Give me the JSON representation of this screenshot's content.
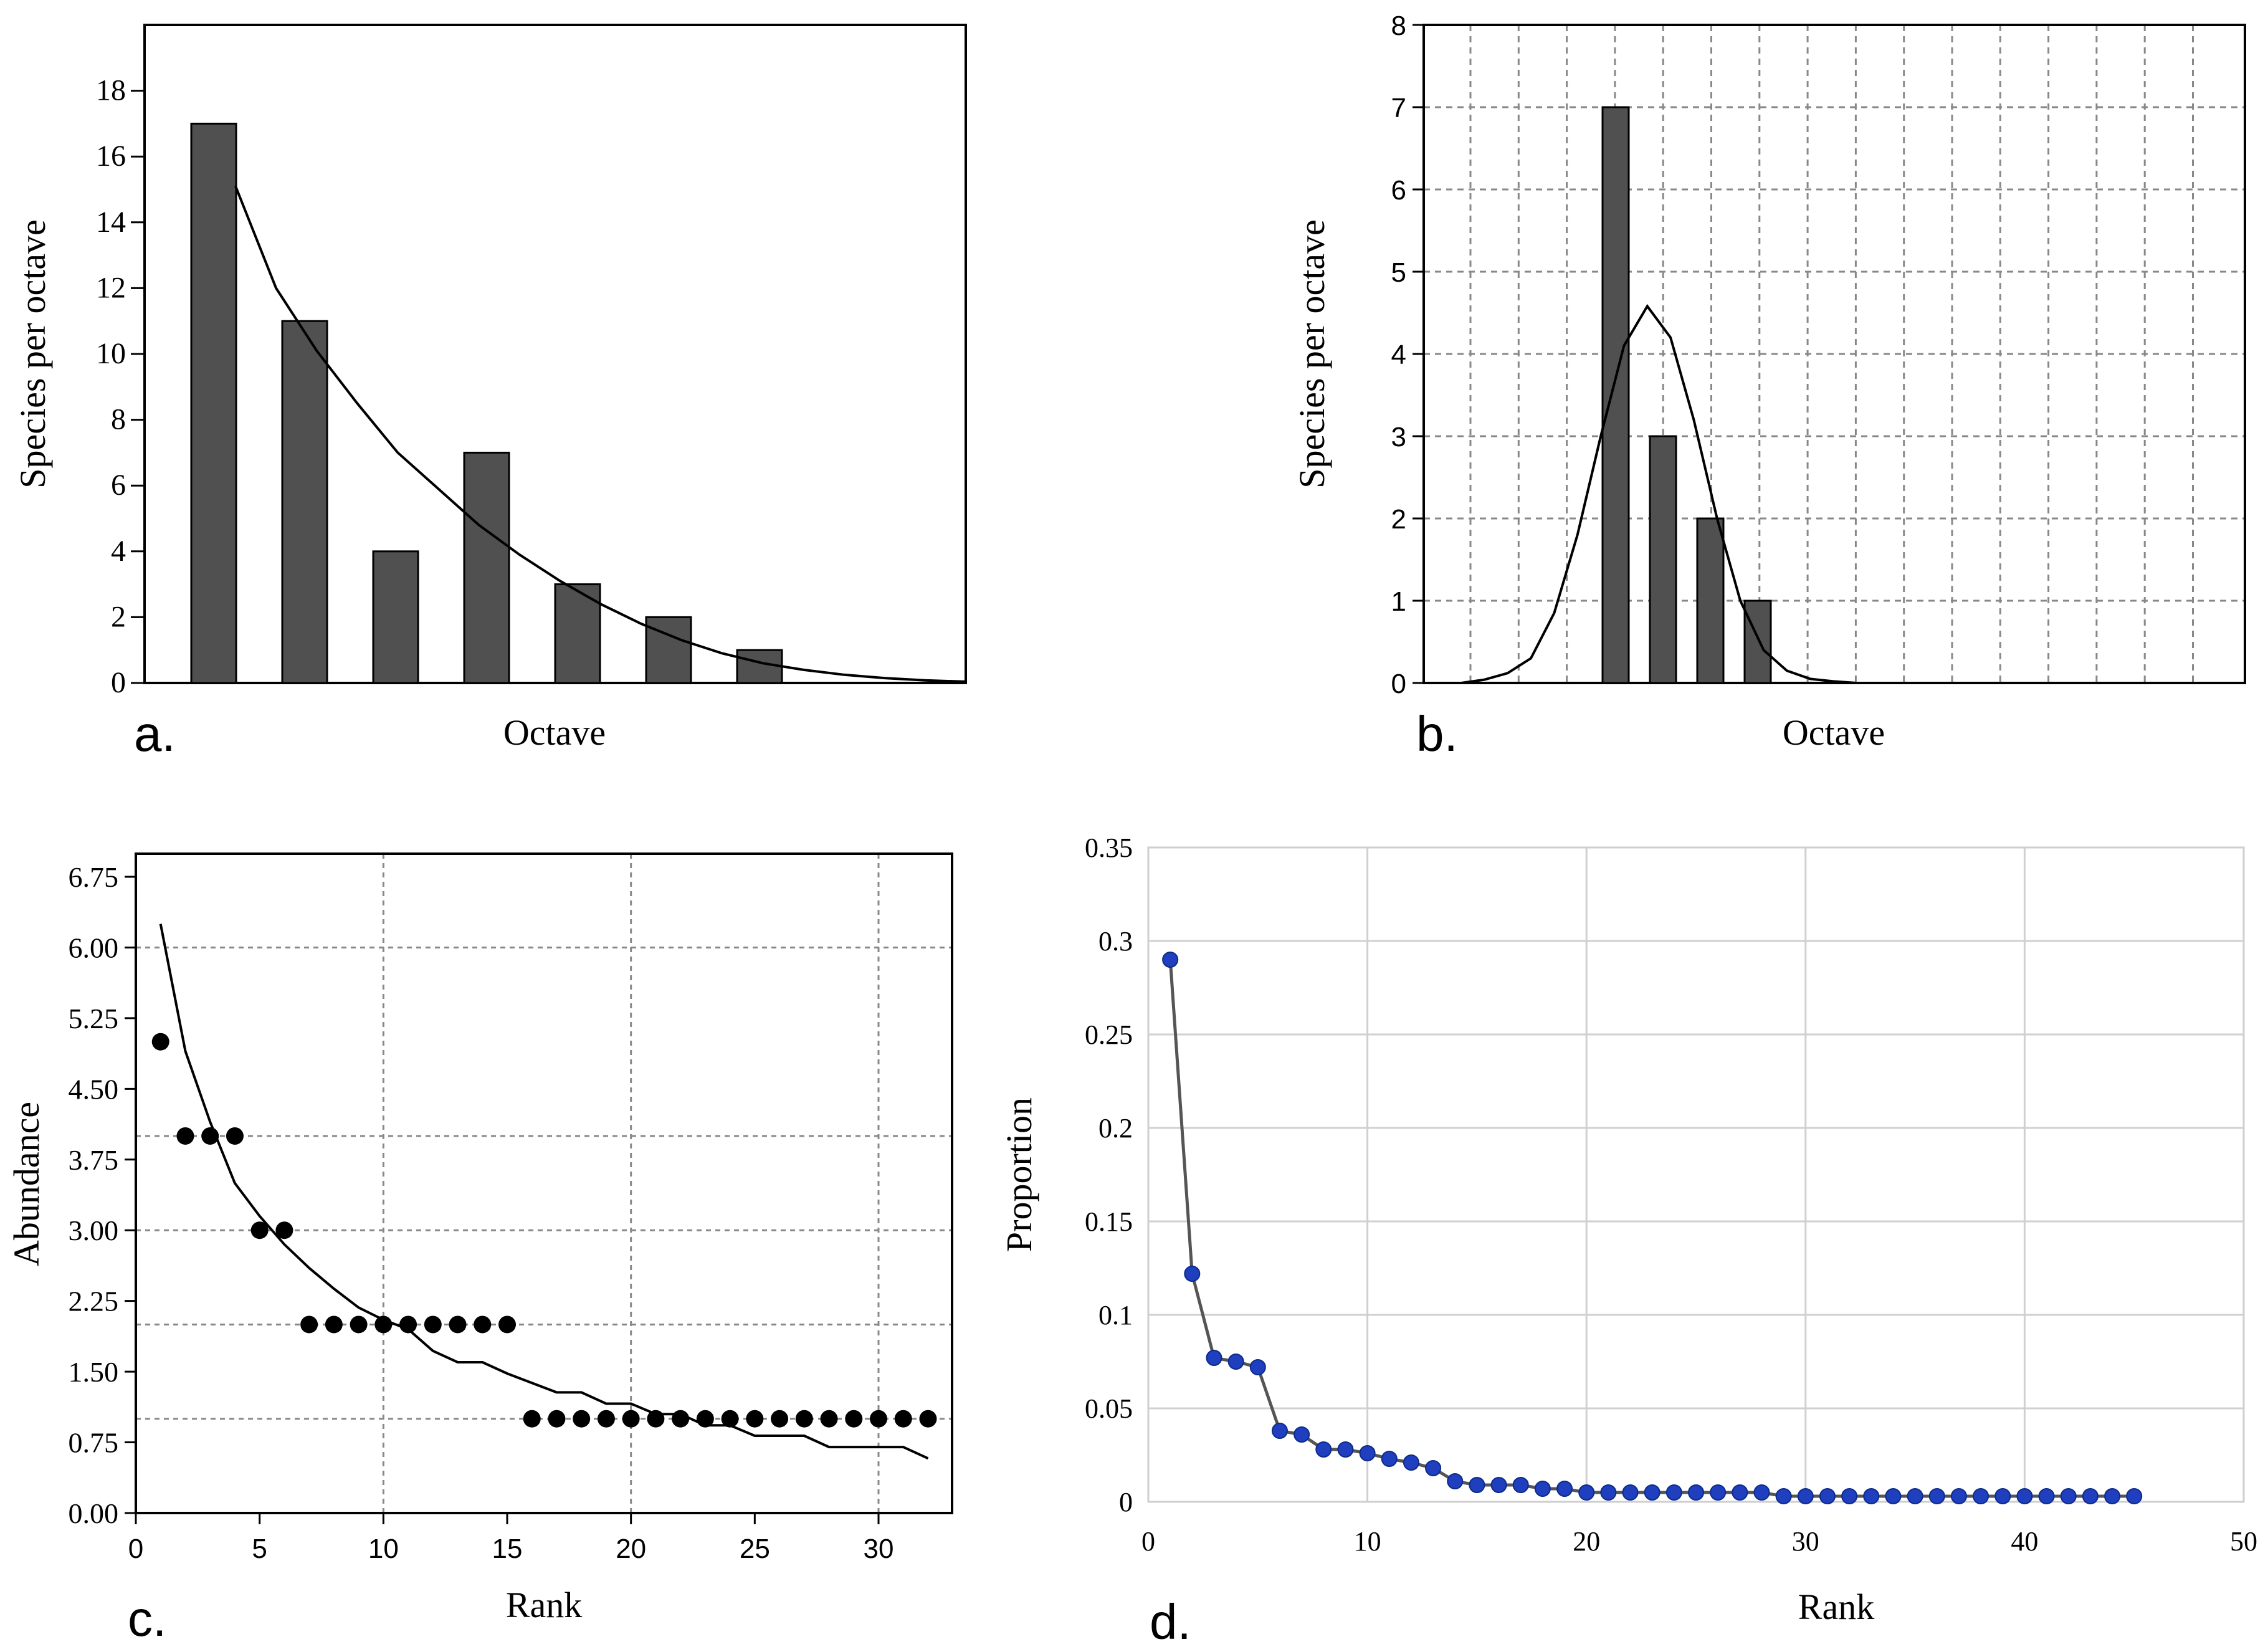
{
  "colors": {
    "bar": "#505050",
    "line": "#000000",
    "dot_c": "#000000",
    "dot_d": "#1f3fbf",
    "line_d": "#555555",
    "grid_dashed": "#888888",
    "grid_d": "#d0d0d0"
  },
  "chart_data": [
    {
      "panel": "a.",
      "type": "bar",
      "xlabel": "Octave",
      "ylabel": "Species per octave",
      "ylim": [
        0,
        20
      ],
      "yticks": [
        "0",
        "2",
        "4",
        "6",
        "8",
        "10",
        "12",
        "14",
        "16",
        "18"
      ],
      "values": [
        17,
        11,
        4,
        7,
        3,
        2,
        1
      ],
      "fit_curve": {
        "x": [
          0.0,
          0.5,
          1.0,
          1.5,
          2.0,
          2.5,
          3.0,
          3.5,
          4.0,
          4.5,
          5.0,
          5.5,
          6.0,
          6.5,
          7.0,
          7.5,
          8.0,
          8.5,
          9.0
        ],
        "y": [
          15.1,
          12.0,
          10.1,
          8.5,
          7.0,
          5.9,
          4.8,
          3.9,
          3.1,
          2.4,
          1.8,
          1.3,
          0.9,
          0.6,
          0.4,
          0.25,
          0.15,
          0.08,
          0.04
        ]
      }
    },
    {
      "panel": "b.",
      "type": "bar",
      "xlabel": "Octave",
      "ylabel": "Species per octave",
      "ylim": [
        0,
        8
      ],
      "yticks": [
        "0",
        "1",
        "2",
        "3",
        "4",
        "5",
        "6",
        "7",
        "8"
      ],
      "grid": true,
      "values": [
        7,
        3,
        2,
        1
      ],
      "fit_curve": {
        "x": [
          0,
          0.5,
          1,
          1.5,
          2,
          2.5,
          3,
          3.5,
          4,
          4.5,
          5,
          5.5,
          6,
          6.5,
          7,
          7.5,
          8,
          8.5,
          9,
          9.5,
          10,
          10.5,
          11,
          11.5,
          12,
          12.5,
          13,
          13.5,
          14,
          14.5,
          15,
          15.5,
          16
        ],
        "y": [
          0,
          0.04,
          0.12,
          0.3,
          0.85,
          1.8,
          3.0,
          4.1,
          4.58,
          4.2,
          3.2,
          2.0,
          1.0,
          0.4,
          0.15,
          0.05,
          0.02,
          0,
          0,
          0,
          0,
          0,
          0,
          0,
          0,
          0,
          0,
          0,
          0,
          0,
          0,
          0,
          0
        ]
      }
    },
    {
      "panel": "c.",
      "type": "scatter",
      "xlabel": "Rank",
      "ylabel": "Abundance",
      "xlim": [
        0,
        33
      ],
      "ylim": [
        0,
        7.0
      ],
      "xticks": [
        "0",
        "5",
        "10",
        "15",
        "20",
        "25",
        "30"
      ],
      "yticks": [
        "0.00",
        "0.75",
        "1.50",
        "2.25",
        "3.00",
        "3.75",
        "4.50",
        "5.25",
        "6.00",
        "6.75"
      ],
      "grid": true,
      "points": {
        "x": [
          1,
          2,
          3,
          4,
          5,
          6,
          7,
          8,
          9,
          10,
          11,
          12,
          13,
          14,
          15,
          16,
          17,
          18,
          19,
          20,
          21,
          22,
          23,
          24,
          25,
          26,
          27,
          28,
          29,
          30,
          31,
          32
        ],
        "y": [
          5,
          4,
          4,
          4,
          3,
          3,
          2,
          2,
          2,
          2,
          2,
          2,
          2,
          2,
          2,
          1,
          1,
          1,
          1,
          1,
          1,
          1,
          1,
          1,
          1,
          1,
          1,
          1,
          1,
          1,
          1,
          1
        ]
      },
      "fit_curve": {
        "x": [
          1,
          2,
          3,
          4,
          5,
          6,
          7,
          8,
          9,
          10,
          11,
          12,
          13,
          14,
          15,
          16,
          17,
          18,
          19,
          20,
          21,
          22,
          23,
          24,
          25,
          26,
          27,
          28,
          29,
          30,
          31,
          32
        ],
        "y": [
          6.25,
          4.9,
          4.15,
          3.5,
          3.15,
          2.85,
          2.6,
          2.38,
          2.18,
          2.05,
          1.95,
          1.72,
          1.6,
          1.6,
          1.48,
          1.38,
          1.28,
          1.28,
          1.16,
          1.16,
          1.05,
          1.05,
          0.93,
          0.93,
          0.82,
          0.82,
          0.82,
          0.7,
          0.7,
          0.7,
          0.7,
          0.58
        ]
      }
    },
    {
      "panel": "d.",
      "type": "line",
      "xlabel": "Rank",
      "ylabel": "Proportion",
      "xlim": [
        0,
        50
      ],
      "ylim": [
        0,
        0.35
      ],
      "xticks": [
        "0",
        "10",
        "20",
        "30",
        "40",
        "50"
      ],
      "yticks": [
        "0",
        "0.05",
        "0.1",
        "0.15",
        "0.2",
        "0.25",
        "0.3",
        "0.35"
      ],
      "grid": true,
      "x": [
        1,
        2,
        3,
        4,
        5,
        6,
        7,
        8,
        9,
        10,
        11,
        12,
        13,
        14,
        15,
        16,
        17,
        18,
        19,
        20,
        21,
        22,
        23,
        24,
        25,
        26,
        27,
        28,
        29,
        30,
        31,
        32,
        33,
        34,
        35,
        36,
        37,
        38,
        39,
        40,
        41,
        42,
        43,
        44,
        45
      ],
      "y": [
        0.29,
        0.122,
        0.077,
        0.075,
        0.072,
        0.038,
        0.036,
        0.028,
        0.028,
        0.026,
        0.023,
        0.021,
        0.018,
        0.011,
        0.009,
        0.009,
        0.009,
        0.007,
        0.007,
        0.005,
        0.005,
        0.005,
        0.005,
        0.005,
        0.005,
        0.005,
        0.005,
        0.005,
        0.003,
        0.003,
        0.003,
        0.003,
        0.003,
        0.003,
        0.003,
        0.003,
        0.003,
        0.003,
        0.003,
        0.003,
        0.003,
        0.003,
        0.003,
        0.003,
        0.003
      ]
    }
  ]
}
